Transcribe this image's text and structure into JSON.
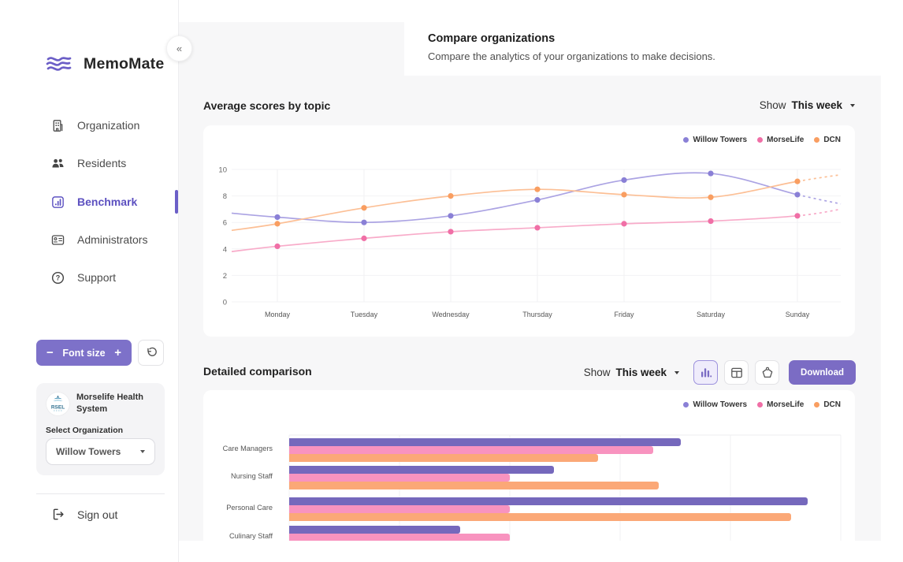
{
  "sidebar": {
    "brand": "MemoMate",
    "collapse_glyph": "«",
    "nav": [
      {
        "label": "Organization"
      },
      {
        "label": "Residents"
      },
      {
        "label": "Benchmark",
        "active": true
      },
      {
        "label": "Administrators"
      },
      {
        "label": "Support"
      }
    ],
    "font_size": {
      "minus": "−",
      "label": "Font size",
      "plus": "+"
    },
    "org_card": {
      "logo_text": "RSEL",
      "org_name": "Morselife Health System",
      "select_label": "Select Organization",
      "selected_org": "Willow Towers"
    },
    "sign_out": "Sign out"
  },
  "header": {
    "title": "Compare organizations",
    "subtitle": "Compare the analytics of your organizations to make decisions."
  },
  "sections": {
    "line": {
      "title": "Average scores by topic",
      "show_label": "Show",
      "period": "This week"
    },
    "bar": {
      "title": "Detailed comparison",
      "show_label": "Show",
      "period": "This week",
      "download_label": "Download"
    }
  },
  "colors": {
    "accent": "#6b5fc7",
    "willow": "#8a80d6",
    "morselife": "#f06fa6",
    "dcn": "#f99e61"
  },
  "chart_data": [
    {
      "type": "line",
      "title": "Average scores by topic",
      "x": [
        "Monday",
        "Tuesday",
        "Wednesday",
        "Thursday",
        "Friday",
        "Saturday",
        "Sunday"
      ],
      "ylim": [
        0,
        10
      ],
      "yticks": [
        0,
        2,
        4,
        6,
        8,
        10
      ],
      "grid": true,
      "legend_position": "top-right",
      "series": [
        {
          "name": "Willow Towers",
          "color": "#8a80d6",
          "line_color": "#aba3e3",
          "values": [
            6.4,
            6.0,
            6.5,
            7.7,
            9.2,
            9.7,
            8.1
          ],
          "edge_left": 6.7,
          "edge_right_dashed": 7.4
        },
        {
          "name": "MorseLife",
          "color": "#f06fa6",
          "line_color": "#f8abc9",
          "values": [
            4.2,
            4.8,
            5.3,
            5.6,
            5.9,
            6.1,
            6.5
          ],
          "edge_left": 3.8,
          "edge_right_dashed": 7.0
        },
        {
          "name": "DCN",
          "color": "#f99e61",
          "line_color": "#fcbf95",
          "values": [
            5.9,
            7.1,
            8.0,
            8.5,
            8.1,
            7.9,
            9.1
          ],
          "edge_left": 5.4,
          "edge_right_dashed": 9.6
        }
      ]
    },
    {
      "type": "bar",
      "title": "Detailed comparison",
      "orientation": "horizontal",
      "categories": [
        "Care Managers",
        "Nursing Staff",
        "Personal Care",
        "Culinary Staff"
      ],
      "xlim": [
        0,
        10
      ],
      "xticks": [
        0,
        2,
        4,
        6,
        8,
        10
      ],
      "legend_position": "top-right",
      "series": [
        {
          "name": "Willow Towers",
          "color": "#7568bc",
          "legend_color": "#8a80d6",
          "values": [
            7.1,
            4.8,
            9.4,
            3.1
          ]
        },
        {
          "name": "MorseLife",
          "color": "#f893bf",
          "legend_color": "#f06fa6",
          "values": [
            6.6,
            4.0,
            4.0,
            4.0
          ]
        },
        {
          "name": "DCN",
          "color": "#fba877",
          "legend_color": "#f99e61",
          "values": [
            5.6,
            6.7,
            9.1,
            null
          ]
        }
      ]
    }
  ]
}
